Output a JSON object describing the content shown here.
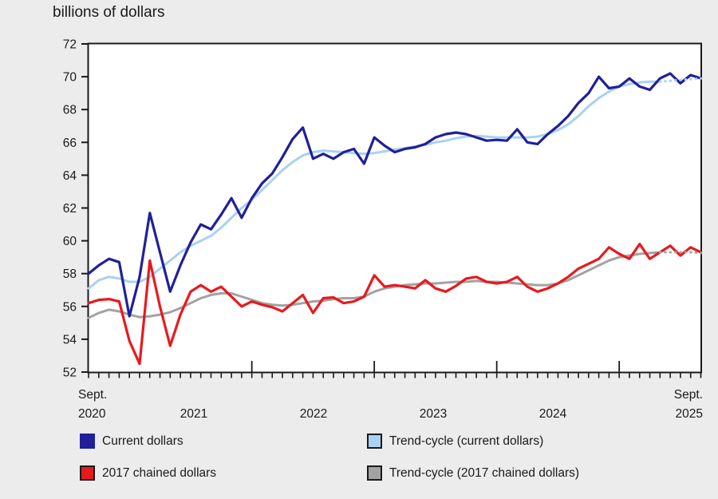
{
  "title": "billions of dollars",
  "colors": {
    "background": "#ECECEC",
    "plot_background": "#FFFFFF",
    "axis": "#1A1A1A",
    "text": "#1A1A1A",
    "current_dollars": "#20209A",
    "trend_current": "#A9D1F2",
    "chained_2017": "#E8191D",
    "trend_chained": "#A2A2A2"
  },
  "y_axis": {
    "ticks": [
      "72",
      "70",
      "68",
      "66",
      "64",
      "62",
      "60",
      "58",
      "56",
      "54",
      "52"
    ],
    "min": 52,
    "max": 72,
    "step": 2
  },
  "x_axis": {
    "start": {
      "line1": "Sept.",
      "line2": "2020"
    },
    "years": [
      "2021",
      "2022",
      "2023",
      "2024"
    ],
    "end": {
      "line1": "Sept.",
      "line2": "2025"
    }
  },
  "legend": {
    "items": [
      {
        "label": "Current dollars",
        "color": "#20209A",
        "border": "#20209A"
      },
      {
        "label": "Trend-cycle (current dollars)",
        "color": "#A9D1F2",
        "border": "#1A1A1A"
      },
      {
        "label": "2017 chained dollars",
        "color": "#E8191D",
        "border": "#1A1A1A"
      },
      {
        "label": "Trend-cycle (2017 chained dollars)",
        "color": "#A2A2A2",
        "border": "#1A1A1A"
      }
    ]
  },
  "chart_data": {
    "type": "line",
    "title": "billions of dollars",
    "x_start": "2020-09",
    "x_end": "2025-09",
    "frequency": "monthly",
    "major_tick_months": [
      "2022-01",
      "2023-01",
      "2024-01",
      "2025-01"
    ],
    "ylim": [
      52,
      72
    ],
    "grid": false,
    "legend_position": "bottom",
    "trend_dashed_from_index": 56,
    "series": [
      {
        "name": "Current dollars",
        "color": "#20209A",
        "style": "solid",
        "values": [
          58.0,
          58.5,
          58.9,
          58.7,
          55.4,
          57.8,
          61.7,
          59.3,
          56.9,
          58.5,
          59.9,
          61.0,
          60.7,
          61.6,
          62.6,
          61.4,
          62.6,
          63.5,
          64.1,
          65.1,
          66.2,
          66.9,
          65.0,
          65.3,
          65.0,
          65.4,
          65.6,
          64.7,
          66.3,
          65.8,
          65.4,
          65.6,
          65.7,
          65.9,
          66.3,
          66.5,
          66.6,
          66.5,
          66.3,
          66.1,
          66.15,
          66.1,
          66.8,
          66.0,
          65.9,
          66.5,
          67.0,
          67.6,
          68.4,
          69.0,
          70.0,
          69.3,
          69.4,
          69.9,
          69.4,
          69.2,
          69.9,
          70.2,
          69.6,
          70.1,
          69.9
        ]
      },
      {
        "name": "Trend-cycle (current dollars)",
        "color": "#A9D1F2",
        "style": "trend-dotted-end",
        "values": [
          57.1,
          57.6,
          57.8,
          57.7,
          57.5,
          57.5,
          57.8,
          58.3,
          58.8,
          59.3,
          59.7,
          60.0,
          60.3,
          60.8,
          61.4,
          62.0,
          62.5,
          63.1,
          63.7,
          64.3,
          64.8,
          65.2,
          65.4,
          65.5,
          65.45,
          65.4,
          65.35,
          65.3,
          65.35,
          65.45,
          65.55,
          65.65,
          65.75,
          65.85,
          66.0,
          66.1,
          66.25,
          66.35,
          66.4,
          66.35,
          66.3,
          66.3,
          66.3,
          66.3,
          66.35,
          66.5,
          66.75,
          67.1,
          67.6,
          68.2,
          68.7,
          69.1,
          69.4,
          69.55,
          69.65,
          69.7,
          69.7,
          69.75,
          69.8,
          69.85,
          69.9
        ]
      },
      {
        "name": "2017 chained dollars",
        "color": "#E8191D",
        "style": "solid",
        "values": [
          56.2,
          56.4,
          56.45,
          56.3,
          53.9,
          52.5,
          58.8,
          56.0,
          53.6,
          55.5,
          56.9,
          57.3,
          56.9,
          57.2,
          56.6,
          56.0,
          56.3,
          56.1,
          55.95,
          55.7,
          56.2,
          56.7,
          55.6,
          56.5,
          56.55,
          56.2,
          56.3,
          56.6,
          57.9,
          57.2,
          57.3,
          57.2,
          57.1,
          57.6,
          57.1,
          56.9,
          57.25,
          57.7,
          57.8,
          57.5,
          57.4,
          57.5,
          57.8,
          57.2,
          56.9,
          57.1,
          57.4,
          57.8,
          58.3,
          58.6,
          58.9,
          59.6,
          59.2,
          58.9,
          59.8,
          58.9,
          59.3,
          59.7,
          59.1,
          59.6,
          59.3
        ]
      },
      {
        "name": "Trend-cycle (2017 chained dollars)",
        "color": "#A2A2A2",
        "style": "trend-dotted-end",
        "values": [
          55.3,
          55.6,
          55.8,
          55.7,
          55.5,
          55.35,
          55.4,
          55.5,
          55.65,
          55.9,
          56.2,
          56.5,
          56.7,
          56.8,
          56.8,
          56.6,
          56.4,
          56.2,
          56.1,
          56.05,
          56.1,
          56.2,
          56.3,
          56.35,
          56.45,
          56.5,
          56.5,
          56.6,
          56.9,
          57.1,
          57.2,
          57.3,
          57.35,
          57.4,
          57.4,
          57.45,
          57.5,
          57.5,
          57.55,
          57.5,
          57.5,
          57.45,
          57.4,
          57.35,
          57.3,
          57.3,
          57.4,
          57.6,
          57.9,
          58.2,
          58.5,
          58.8,
          59.0,
          59.1,
          59.2,
          59.25,
          59.3,
          59.3,
          59.3,
          59.3,
          59.25
        ]
      }
    ]
  }
}
